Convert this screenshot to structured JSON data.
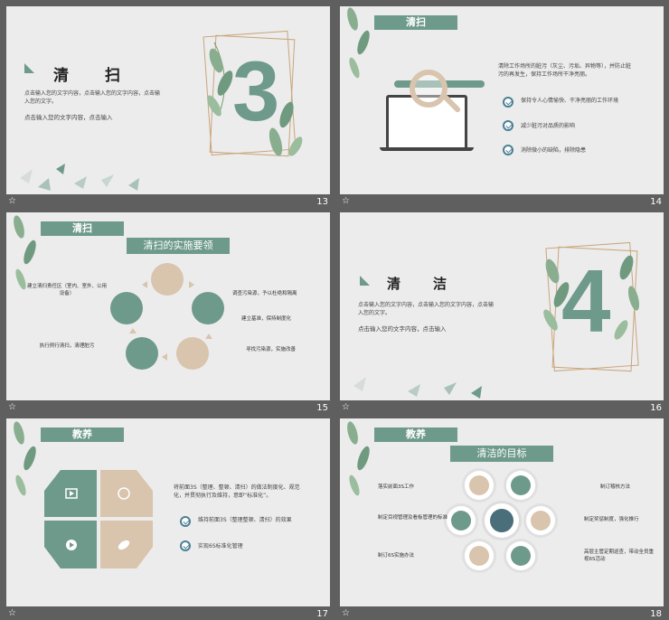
{
  "slides": [
    {
      "num": "13",
      "title": "清　　扫",
      "big_number": "3",
      "body1": "点击输入您的文字内容，点击输入您的文字内容，点击输入您的文字。",
      "body2": "点击输入您的文字内容，点击输入"
    },
    {
      "num": "14",
      "title": "清扫",
      "desc": "清除工作场所的脏污（灰尘、污垢、异物等），并防止脏污的再发生，保持工作场所干净亮丽。",
      "bullets": [
        "保持令人心情愉快、干净亮丽的工作环境",
        "减少脏污对品质的影响",
        "消除微小的缺陷，排除隐患"
      ]
    },
    {
      "num": "15",
      "title": "清扫",
      "subtitle": "清扫的实施要领",
      "left_labels": [
        "建立清扫责任区（室内、室外、公用设备）",
        "执行例行清扫，清理脏污"
      ],
      "right_labels": [
        "调查污染源，予以杜绝和隔离",
        "建立基准，保持制度化",
        "寻找污染源，实施改善"
      ]
    },
    {
      "num": "16",
      "title": "清　　洁",
      "big_number": "4",
      "body1": "点击输入您的文字内容，点击输入您的文字内容，点击输入您的文字。",
      "body2": "点击输入您的文字内容，点击输入"
    },
    {
      "num": "17",
      "title": "教养",
      "desc": "将前面3S（整理、整顿、清扫）的做法制度化、规范化，并贯彻执行及维持，意即“标准化”。",
      "bullets": [
        "维持前面3S（整理整顿、清扫）的效果",
        "实现6S标准化管理"
      ]
    },
    {
      "num": "18",
      "title": "教养",
      "subtitle": "清洁的目标",
      "left_labels": [
        "落实前面3S工作",
        "制定目视管理及看板管理的标准",
        "制订6S实施办法"
      ],
      "right_labels": [
        "制订稽核方法",
        "制定奖惩制度，强化推行",
        "高层主管定期巡查，带动全员重视6S活动"
      ]
    }
  ],
  "colors": {
    "green": "#6e9a8b",
    "tan": "#d9c4ad",
    "background": "#ececec",
    "page": "#5f5f5f",
    "frame": "#c9a57a",
    "check": "#4a7f95"
  },
  "icons": {
    "star": "☆"
  }
}
